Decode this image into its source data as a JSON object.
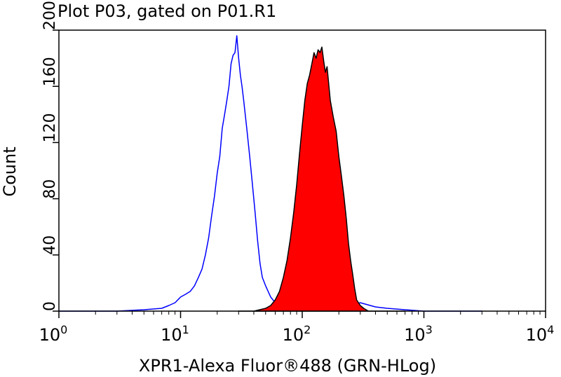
{
  "chart_data": {
    "type": "area",
    "title": "Plot P03, gated on P01.R1",
    "xlabel": "XPR1-Alexa Fluor®488 (GRN-HLog)",
    "ylabel": "Count",
    "xscale": "log",
    "xlim": [
      1,
      10000
    ],
    "ylim": [
      0,
      200
    ],
    "x_ticks": [
      {
        "value": 1,
        "base": "10",
        "exp": "0"
      },
      {
        "value": 10,
        "base": "10",
        "exp": "1"
      },
      {
        "value": 100,
        "base": "10",
        "exp": "2"
      },
      {
        "value": 1000,
        "base": "10",
        "exp": "3"
      },
      {
        "value": 10000,
        "base": "10",
        "exp": "4"
      }
    ],
    "y_ticks": [
      {
        "value": 0,
        "label": "0"
      },
      {
        "value": 40,
        "label": "40"
      },
      {
        "value": 80,
        "label": "80"
      },
      {
        "value": 120,
        "label": "120"
      },
      {
        "value": 160,
        "label": "160"
      },
      {
        "value": 200,
        "label": "200"
      }
    ],
    "grid": false,
    "series": [
      {
        "style": "outline",
        "color": "#0000ff",
        "x": [
          1,
          3,
          5,
          7,
          8,
          9,
          10,
          11,
          12,
          13,
          14,
          15,
          16,
          17,
          18,
          19,
          20,
          21,
          22,
          23,
          24,
          25,
          26,
          27,
          28,
          29,
          30,
          31,
          32,
          33,
          34,
          35,
          37,
          39,
          41,
          43,
          45,
          47,
          50,
          55,
          60,
          70,
          80,
          100,
          200,
          300,
          400,
          500,
          700,
          1000,
          2000,
          3000
        ],
        "y": [
          0,
          0,
          1,
          2,
          4,
          6,
          10,
          12,
          14,
          18,
          24,
          30,
          40,
          52,
          68,
          82,
          98,
          110,
          130,
          140,
          150,
          160,
          176,
          182,
          184,
          196,
          180,
          168,
          160,
          150,
          140,
          130,
          110,
          90,
          70,
          50,
          34,
          24,
          18,
          10,
          6,
          3,
          2,
          1,
          1,
          6,
          3,
          2,
          1,
          0,
          0,
          0
        ]
      },
      {
        "style": "filled",
        "color": "#ff0000",
        "edge_color": "#000000",
        "x": [
          30,
          40,
          50,
          55,
          60,
          65,
          70,
          75,
          80,
          85,
          90,
          95,
          100,
          105,
          110,
          115,
          120,
          125,
          130,
          135,
          140,
          145,
          150,
          155,
          160,
          170,
          180,
          190,
          200,
          210,
          220,
          230,
          240,
          250,
          260,
          270,
          280,
          300,
          320,
          350,
          400,
          500,
          700
        ],
        "y": [
          0,
          0,
          2,
          4,
          8,
          14,
          24,
          36,
          52,
          70,
          90,
          112,
          132,
          150,
          162,
          168,
          176,
          184,
          180,
          186,
          184,
          188,
          178,
          170,
          174,
          150,
          138,
          128,
          110,
          96,
          82,
          66,
          48,
          36,
          26,
          16,
          8,
          4,
          2,
          0,
          0,
          0,
          0
        ]
      }
    ]
  }
}
